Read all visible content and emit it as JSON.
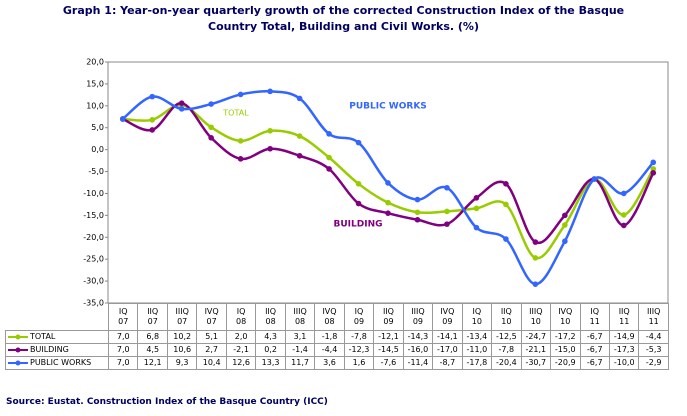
{
  "chart_data": {
    "type": "line",
    "title": "Graph 1: Year-on-year quarterly growth of the corrected Construction Index of the Basque\nCountry Total, Building and Civil Works. (%)",
    "source": "Source: Eustat. Construction Index of the Basque Country (ICC)",
    "categories": [
      "IQ\n07",
      "IIQ\n07",
      "IIIQ\n07",
      "IVQ\n07",
      "IQ\n08",
      "IIQ\n08",
      "IIIQ\n08",
      "IVQ\n08",
      "IQ\n09",
      "IIQ\n09",
      "IIIQ\n09",
      "IVQ\n09",
      "IQ\n10",
      "IIQ\n10",
      "IIIQ\n10",
      "IVQ\n10",
      "IQ\n11",
      "IIQ\n11",
      "IIIQ\n11"
    ],
    "series": [
      {
        "name": "TOTAL",
        "color": "#99cc00",
        "values": [
          7.0,
          6.8,
          10.2,
          5.1,
          2.0,
          4.3,
          3.1,
          -1.8,
          -7.8,
          -12.1,
          -14.3,
          -14.1,
          -13.4,
          -12.5,
          -24.7,
          -17.2,
          -6.7,
          -14.9,
          -4.4
        ],
        "value_labels": [
          "7,0",
          "6,8",
          "10,2",
          "5,1",
          "2,0",
          "4,3",
          "3,1",
          "-1,8",
          "-7,8",
          "-12,1",
          "-14,3",
          "-14,1",
          "-13,4",
          "-12,5",
          "-24,7",
          "-17,2",
          "-6,7",
          "-14,9",
          "-4,4"
        ]
      },
      {
        "name": "BUILDING",
        "color": "#800080",
        "values": [
          7.0,
          4.5,
          10.6,
          2.7,
          -2.1,
          0.2,
          -1.4,
          -4.4,
          -12.3,
          -14.5,
          -16.0,
          -17.0,
          -11.0,
          -7.8,
          -21.1,
          -15.0,
          -6.7,
          -17.3,
          -5.3
        ],
        "value_labels": [
          "7,0",
          "4,5",
          "10,6",
          "2,7",
          "-2,1",
          "0,2",
          "-1,4",
          "-4,4",
          "-12,3",
          "-14,5",
          "-16,0",
          "-17,0",
          "-11,0",
          "-7,8",
          "-21,1",
          "-15,0",
          "-6,7",
          "-17,3",
          "-5,3"
        ]
      },
      {
        "name": "PUBLIC WORKS",
        "color": "#3366ff",
        "values": [
          7.0,
          12.1,
          9.3,
          10.4,
          12.6,
          13.3,
          11.7,
          3.6,
          1.6,
          -7.6,
          -11.4,
          -8.7,
          -17.8,
          -20.4,
          -30.7,
          -20.9,
          -6.7,
          -10.0,
          -2.9
        ],
        "value_labels": [
          "7,0",
          "12,1",
          "9,3",
          "10,4",
          "12,6",
          "13,3",
          "11,7",
          "3,6",
          "1,6",
          "-7,6",
          "-11,4",
          "-8,7",
          "-17,8",
          "-20,4",
          "-30,7",
          "-20,9",
          "-6,7",
          "-10,0",
          "-2,9"
        ]
      }
    ],
    "annotations": [
      {
        "text": "TOTAL",
        "color": "#99cc00"
      },
      {
        "text": "PUBLIC WORKS",
        "color": "#3366ff"
      },
      {
        "text": "BUILDING",
        "color": "#800080"
      }
    ],
    "ylim": [
      -35,
      20
    ],
    "yticks": [
      {
        "value": 20,
        "label": "20,0"
      },
      {
        "value": 15,
        "label": "15,0"
      },
      {
        "value": 10,
        "label": "10,0"
      },
      {
        "value": 5,
        "label": "5,0"
      },
      {
        "value": 0,
        "label": "0,0"
      },
      {
        "value": -5,
        "label": "-5,0"
      },
      {
        "value": -10,
        "label": "-10,0"
      },
      {
        "value": -15,
        "label": "-15,0"
      },
      {
        "value": -20,
        "label": "-20,0"
      },
      {
        "value": -25,
        "label": "-25,0"
      },
      {
        "value": -30,
        "label": "-30,0"
      },
      {
        "value": -35,
        "label": "-35,0"
      }
    ],
    "grid": false
  }
}
